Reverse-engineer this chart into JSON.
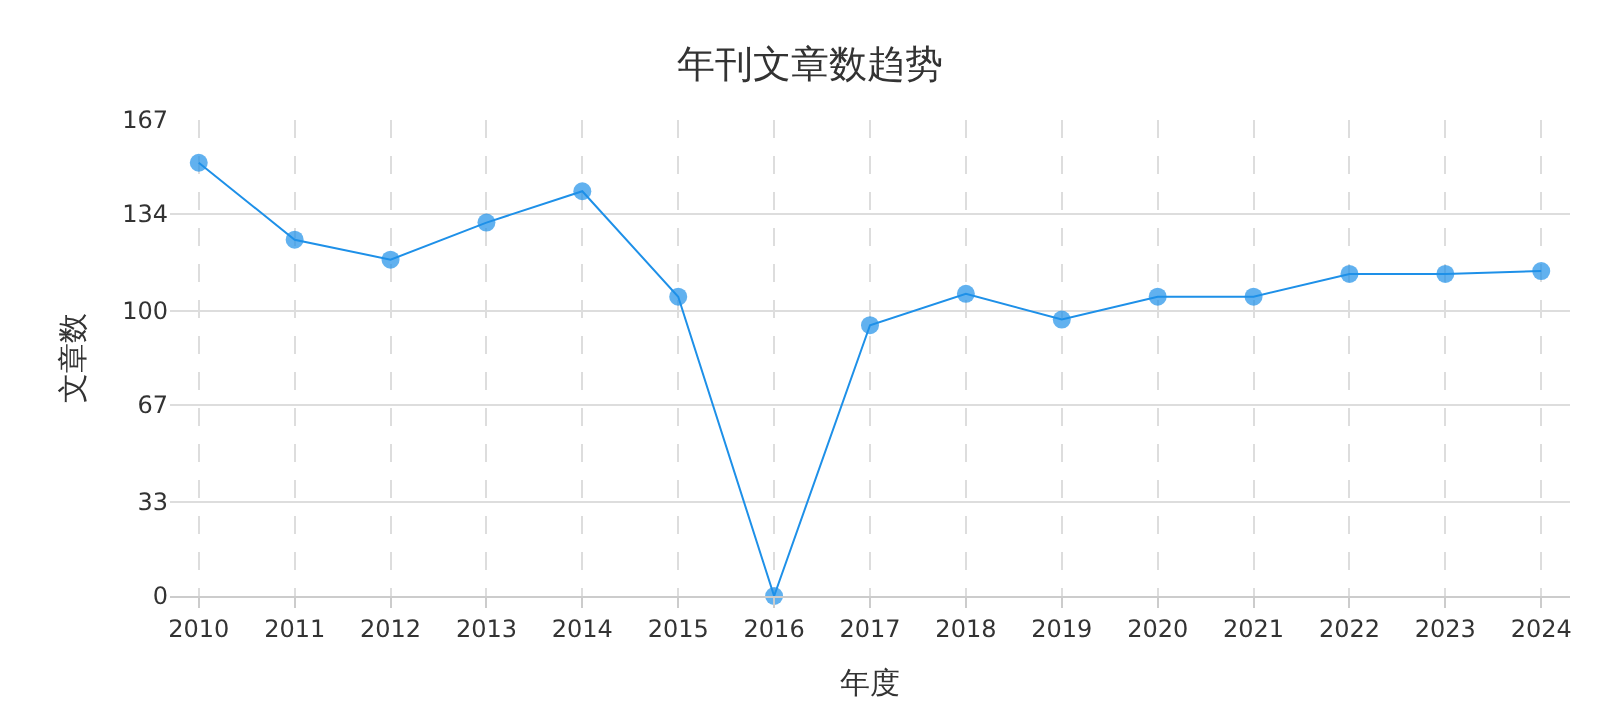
{
  "chart_data": {
    "type": "line",
    "title": "年刊文章数趋势",
    "xlabel": "年度",
    "ylabel": "文章数",
    "categories": [
      "2010",
      "2011",
      "2012",
      "2013",
      "2014",
      "2015",
      "2016",
      "2017",
      "2018",
      "2019",
      "2020",
      "2021",
      "2022",
      "2023",
      "2024"
    ],
    "series": [
      {
        "color": "#1e90e8",
        "values": [
          152,
          125,
          118,
          131,
          142,
          105,
          0,
          95,
          106,
          97,
          105,
          105,
          113,
          113,
          114
        ]
      }
    ],
    "ylim": [
      0,
      167
    ],
    "yticks": [
      0,
      33,
      67,
      100,
      134,
      167
    ],
    "grid": true,
    "marker": "circle",
    "line_style": "solid",
    "legend": false
  }
}
